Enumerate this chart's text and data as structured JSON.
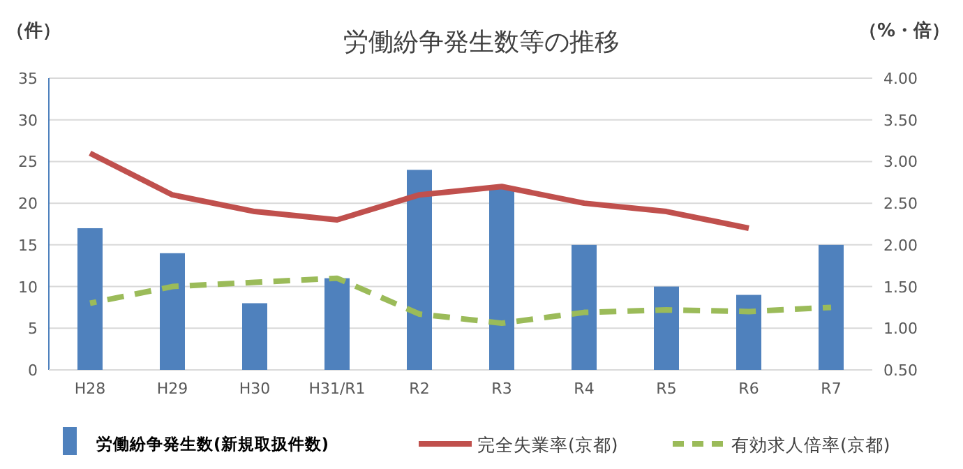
{
  "chart_data": {
    "type": "bar",
    "title": "労働紛争発生数等の推移",
    "ylabel": "（件）",
    "y2label": "（%・倍）",
    "categories": [
      "H28",
      "H29",
      "H30",
      "H31/R1",
      "R2",
      "R3",
      "R4",
      "R5",
      "R6",
      "R7"
    ],
    "series": [
      {
        "name": "労働紛争発生数(新規取扱件数)",
        "color": "#4f81bd",
        "values": [
          17,
          14,
          8,
          11,
          24,
          22,
          15,
          10,
          9,
          15
        ]
      },
      {
        "name": "完全失業率(京都)",
        "type": "line",
        "axis": "y2",
        "color": "#c0504d",
        "line_style": "solid",
        "values": [
          3.1,
          2.6,
          2.4,
          2.3,
          2.6,
          2.7,
          2.5,
          2.4,
          2.2,
          null
        ]
      },
      {
        "name": "有効求人倍率(京都)",
        "type": "line",
        "axis": "y2",
        "color": "#9bbb59",
        "line_style": "dashed",
        "values": [
          1.3,
          1.5,
          1.55,
          1.6,
          1.17,
          1.06,
          1.19,
          1.22,
          1.2,
          1.25
        ]
      }
    ],
    "ylim": [
      0,
      35
    ],
    "yticks": [
      0,
      5,
      10,
      15,
      20,
      25,
      30,
      35
    ],
    "y2lim": [
      0.5,
      4
    ],
    "y2ticks": [
      {
        "value": 0.5,
        "label": "0.50"
      },
      {
        "value": 1,
        "label": "1.00"
      },
      {
        "value": 1.5,
        "label": "1.50"
      },
      {
        "value": 2,
        "label": "2.00"
      },
      {
        "value": 2.5,
        "label": "2.50"
      },
      {
        "value": 3,
        "label": "3.00"
      },
      {
        "value": 3.5,
        "label": "3.50"
      },
      {
        "value": 4,
        "label": "4.00"
      }
    ],
    "grid": "y",
    "legend": "bottom",
    "marker": "none"
  }
}
